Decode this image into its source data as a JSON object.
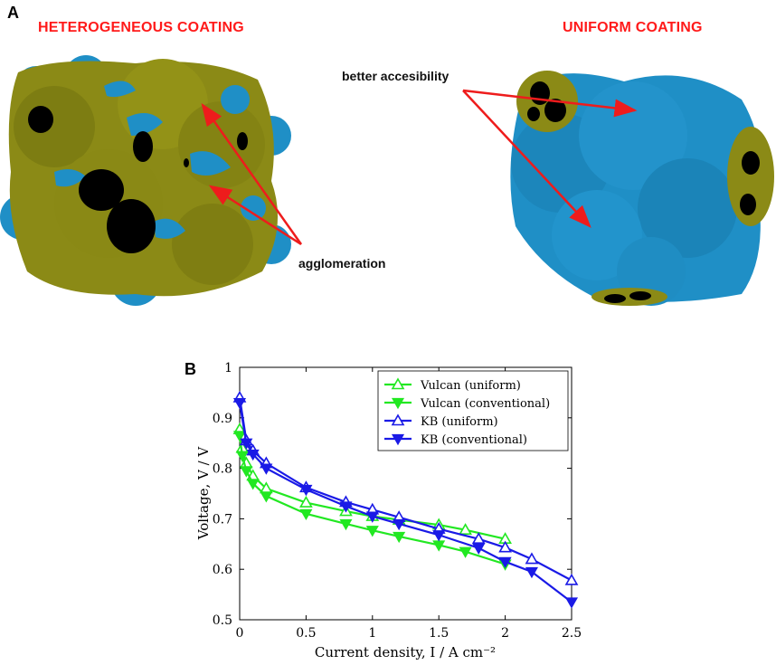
{
  "panel_a": {
    "letter": "A",
    "left_title": "HETEROGENEOUS COATING",
    "right_title": "UNIFORM COATING",
    "annotation_accessibility": "better accesibility",
    "annotation_agglomeration": "agglomeration",
    "colors": {
      "coating": "#8b8a16",
      "carbon": "#1f8fc6",
      "pore": "#000000",
      "arrow": "#ee1c1c"
    }
  },
  "panel_b": {
    "letter": "B"
  },
  "chart_data": {
    "type": "line",
    "xlabel": "Current density, I / A cm⁻²",
    "ylabel": "Voltage, V / V",
    "xlim": [
      0,
      2.5
    ],
    "ylim": [
      0.5,
      1.0
    ],
    "xticks": [
      0,
      0.5,
      1,
      1.5,
      2,
      2.5
    ],
    "xtick_labels": [
      "0",
      "0.5",
      "1",
      "1.5",
      "2",
      "2.5"
    ],
    "yticks": [
      0.5,
      0.6,
      0.7,
      0.8,
      0.9,
      1.0
    ],
    "ytick_labels": [
      "0.5",
      "0.6",
      "0.7",
      "0.8",
      "0.9",
      "1"
    ],
    "grid": false,
    "legend_position": "top-right",
    "series": [
      {
        "name": "Vulcan (uniform)",
        "color": "#22e822",
        "marker": "triangle-up-open",
        "x": [
          0.0,
          0.02,
          0.05,
          0.1,
          0.2,
          0.5,
          0.8,
          1.0,
          1.2,
          1.5,
          1.7,
          2.0
        ],
        "y": [
          0.877,
          0.84,
          0.81,
          0.785,
          0.76,
          0.732,
          0.715,
          0.705,
          0.698,
          0.688,
          0.678,
          0.66
        ]
      },
      {
        "name": "Vulcan (conventional)",
        "color": "#22e822",
        "marker": "triangle-down-filled",
        "x": [
          0.0,
          0.02,
          0.05,
          0.1,
          0.2,
          0.5,
          0.8,
          1.0,
          1.2,
          1.5,
          1.7,
          2.0
        ],
        "y": [
          0.865,
          0.825,
          0.795,
          0.77,
          0.745,
          0.71,
          0.69,
          0.677,
          0.665,
          0.648,
          0.635,
          0.61
        ]
      },
      {
        "name": "KB (uniform)",
        "color": "#1a1ae6",
        "marker": "triangle-up-open",
        "x": [
          0.0,
          0.05,
          0.1,
          0.2,
          0.5,
          0.8,
          1.0,
          1.2,
          1.5,
          1.8,
          2.0,
          2.2,
          2.5
        ],
        "y": [
          0.94,
          0.855,
          0.835,
          0.81,
          0.762,
          0.733,
          0.718,
          0.703,
          0.68,
          0.66,
          0.643,
          0.62,
          0.578
        ]
      },
      {
        "name": "KB (conventional)",
        "color": "#1a1ae6",
        "marker": "triangle-down-filled",
        "x": [
          0.0,
          0.05,
          0.1,
          0.2,
          0.5,
          0.8,
          1.0,
          1.2,
          1.5,
          1.8,
          2.0,
          2.2,
          2.5
        ],
        "y": [
          0.93,
          0.85,
          0.828,
          0.8,
          0.758,
          0.725,
          0.705,
          0.69,
          0.668,
          0.642,
          0.615,
          0.595,
          0.535
        ]
      }
    ]
  }
}
